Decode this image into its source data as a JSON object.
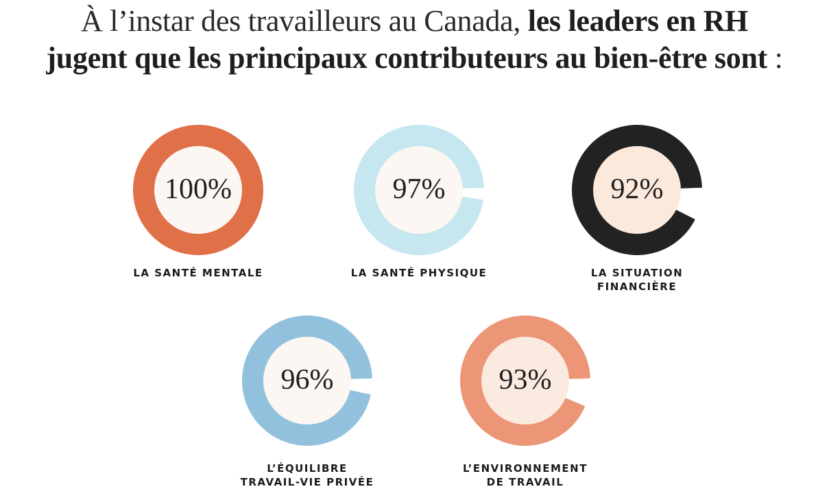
{
  "title": {
    "line1_light": "À l’instar des travailleurs au Canada, ",
    "line1_bold": "les leaders en RH",
    "line2_bold": "jugent que les principaux contributeurs au bien-être sont",
    "line2_light": " :"
  },
  "chart_data": {
    "type": "pie",
    "title": "À l’instar des travailleurs au Canada, les leaders en RH jugent que les principaux contributeurs au bien-être sont :",
    "unit": "%",
    "items": [
      {
        "label_lines": [
          "LA SANTÉ MENTALE"
        ],
        "value": 100,
        "display": "100%",
        "color": "#df7048",
        "inner_color": "#fcf7f3"
      },
      {
        "label_lines": [
          "LA SANTÉ PHYSIQUE"
        ],
        "value": 97,
        "display": "97%",
        "color": "#c6e6f0",
        "inner_color": "#fcf7f3"
      },
      {
        "label_lines": [
          "LA SITUATION",
          "FINANCIÈRE"
        ],
        "value": 92,
        "display": "92%",
        "color": "#222222",
        "inner_color": "#fbe9dc"
      },
      {
        "label_lines": [
          "L’ÉQUILIBRE",
          "TRAVAIL-VIE PRIVÉE"
        ],
        "value": 96,
        "display": "96%",
        "color": "#92c1de",
        "inner_color": "#fcf7f3"
      },
      {
        "label_lines": [
          "L’ENVIRONNEMENT",
          "DE TRAVAIL"
        ],
        "value": 93,
        "display": "93%",
        "color": "#ec9677",
        "inner_color": "#fbeadf"
      }
    ]
  }
}
